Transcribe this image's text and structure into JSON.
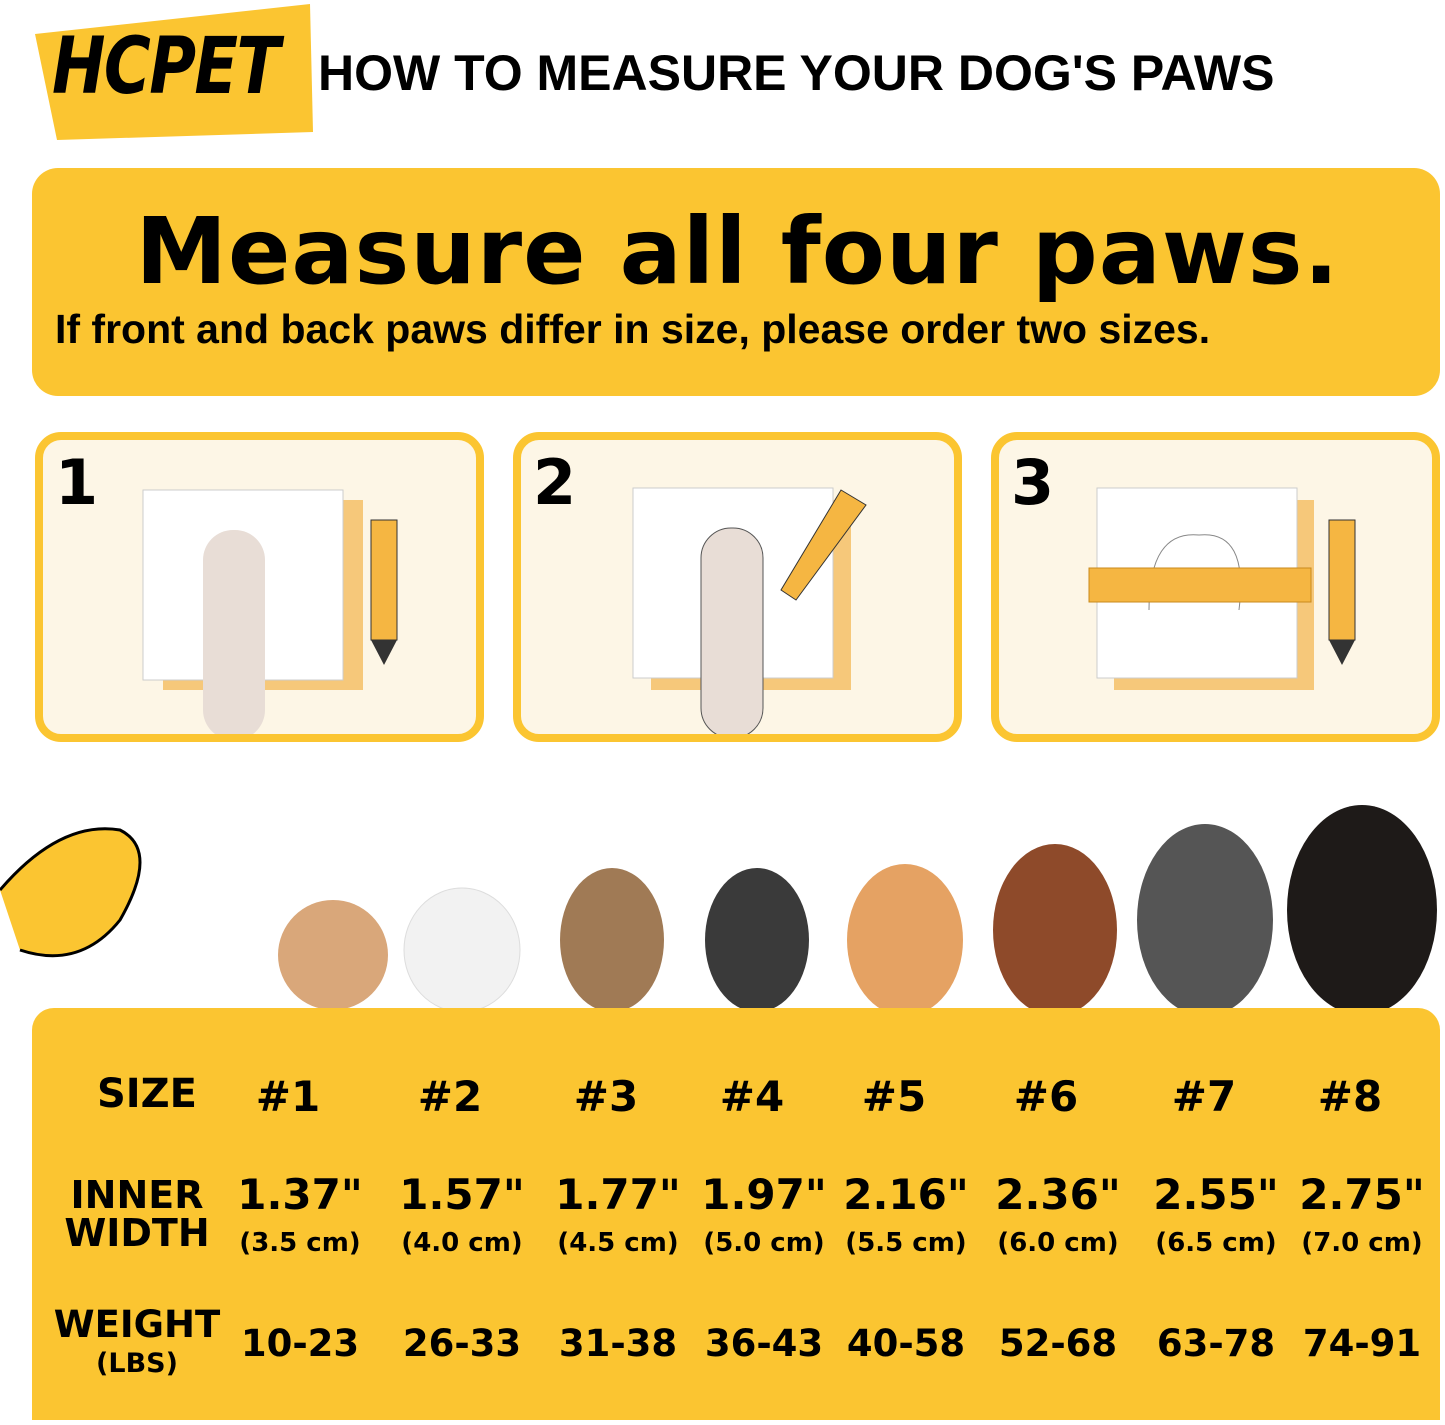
{
  "header": {
    "brand": "HCPET",
    "title": "HOW TO MEASURE YOUR DOG'S PAWS"
  },
  "banner": {
    "headline": "Measure all four paws.",
    "subline": "If front and back paws differ in size, please order two sizes."
  },
  "steps": [
    {
      "number": "1"
    },
    {
      "number": "2"
    },
    {
      "number": "3"
    }
  ],
  "colors": {
    "accent": "#FBC531",
    "panel_bg": "#FDF6E6",
    "text": "#000000"
  },
  "table": {
    "size_label": "SIZE",
    "width_label_1": "INNER",
    "width_label_2": "WIDTH",
    "weight_label": "WEIGHT",
    "weight_unit": "(LBS)",
    "sizes": [
      "#1",
      "#2",
      "#3",
      "#4",
      "#5",
      "#6",
      "#7",
      "#8"
    ],
    "inner_width_in": [
      "1.37\"",
      "1.57\"",
      "1.77\"",
      "1.97\"",
      "2.16\"",
      "2.36\"",
      "2.55\"",
      "2.75\""
    ],
    "inner_width_cm": [
      "(3.5 cm)",
      "(4.0 cm)",
      "(4.5 cm)",
      "(5.0 cm)",
      "(5.5 cm)",
      "(6.0 cm)",
      "(6.5 cm)",
      "(7.0 cm)"
    ],
    "weight": [
      "10-23",
      "26-33",
      "31-38",
      "36-43",
      "40-58",
      "52-68",
      "63-78",
      "74-91"
    ]
  }
}
